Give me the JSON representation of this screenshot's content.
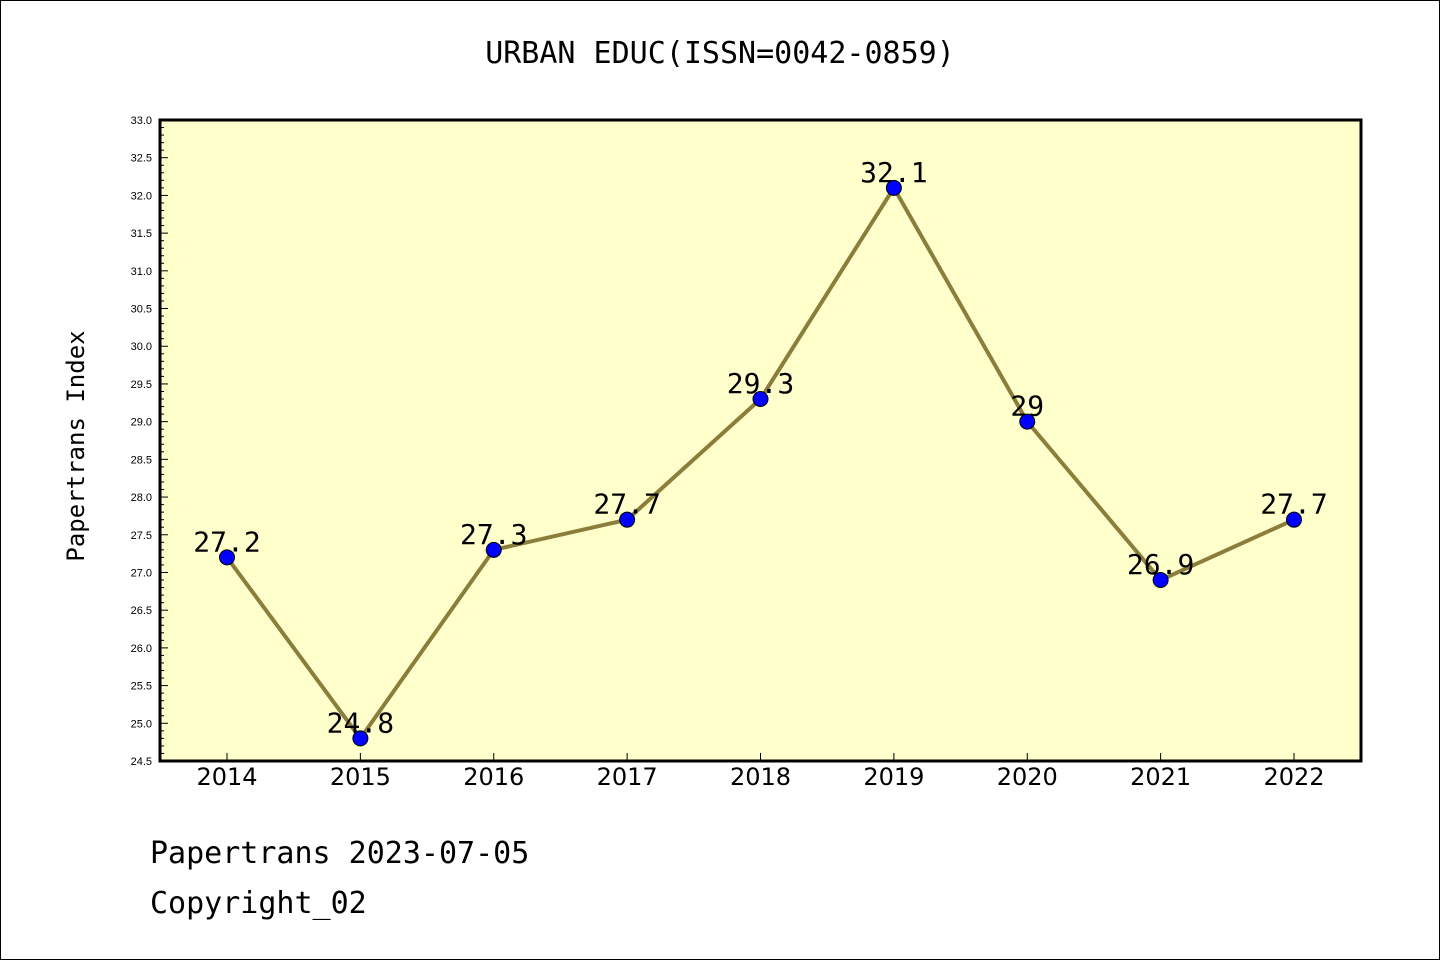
{
  "chart_data": {
    "type": "line",
    "title": "URBAN EDUC(ISSN=0042-0859)",
    "ylabel": "Papertrans Index",
    "xlabel": "",
    "categories": [
      "2014",
      "2015",
      "2016",
      "2017",
      "2018",
      "2019",
      "2020",
      "2021",
      "2022"
    ],
    "series": [
      {
        "values": [
          27.2,
          24.8,
          27.3,
          27.7,
          29.3,
          32.1,
          29,
          26.9,
          27.7
        ],
        "labels": [
          "27.2",
          "24.8",
          "27.3",
          "27.7",
          "29.3",
          "32.1",
          "29",
          "26.9",
          "27.7"
        ]
      }
    ],
    "ylim": [
      24.5,
      33.0
    ],
    "ytick_step": 0.5,
    "grid": false,
    "colors": {
      "plot_background": "#ffffcc",
      "line": "#8b7d3a",
      "marker": "#0000ff"
    }
  },
  "footer": {
    "line1": "Papertrans 2023-07-05",
    "line2": "Copyright_02"
  }
}
